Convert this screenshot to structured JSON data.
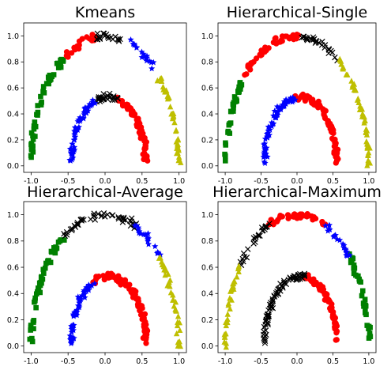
{
  "chart_data": [
    {
      "type": "scatter",
      "title": "Kmeans",
      "xlim": [
        -1.1,
        1.1
      ],
      "ylim": [
        -0.05,
        1.1
      ],
      "xticks": [
        "-1.0",
        "-0.5",
        "0.0",
        "0.5",
        "1.0"
      ],
      "yticks": [
        "0.0",
        "0.2",
        "0.4",
        "0.6",
        "0.8",
        "1.0"
      ],
      "series": [
        {
          "color": "#008000",
          "marker": "square",
          "arcs": [
            {
              "moon": "outer",
              "from": 122,
              "to": 180
            }
          ]
        },
        {
          "color": "#ff0000",
          "marker": "circle",
          "arcs": [
            {
              "moon": "outer",
              "from": 96,
              "to": 122
            },
            {
              "moon": "inner",
              "from": 0,
              "to": 78
            }
          ]
        },
        {
          "color": "#000000",
          "marker": "x",
          "arcs": [
            {
              "moon": "outer",
              "from": 72,
              "to": 96
            },
            {
              "moon": "inner",
              "from": 78,
              "to": 112
            }
          ]
        },
        {
          "color": "#0000ff",
          "marker": "star",
          "arcs": [
            {
              "moon": "outer",
              "from": 50,
              "to": 72
            },
            {
              "moon": "inner",
              "from": 112,
              "to": 180
            }
          ]
        },
        {
          "color": "#bfbf00",
          "marker": "triangle",
          "arcs": [
            {
              "moon": "outer",
              "from": 0,
              "to": 50
            }
          ]
        }
      ]
    },
    {
      "type": "scatter",
      "title": "Hierarchical-Single",
      "xlim": [
        -1.1,
        1.1
      ],
      "ylim": [
        -0.05,
        1.1
      ],
      "xticks": [
        "-1.0",
        "-0.5",
        "0.0",
        "0.5",
        "1.0"
      ],
      "yticks": [
        "0.0",
        "0.2",
        "0.4",
        "0.6",
        "0.8",
        "1.0"
      ],
      "series": [
        {
          "color": "#008000",
          "marker": "square",
          "arcs": [
            {
              "moon": "outer",
              "from": 138,
              "to": 180
            }
          ]
        },
        {
          "color": "#ff0000",
          "marker": "circle",
          "arcs": [
            {
              "moon": "outer",
              "from": 88,
              "to": 138
            },
            {
              "moon": "inner",
              "from": 0,
              "to": 100
            }
          ]
        },
        {
          "color": "#000000",
          "marker": "x",
          "arcs": [
            {
              "moon": "outer",
              "from": 55,
              "to": 88
            }
          ]
        },
        {
          "color": "#0000ff",
          "marker": "star",
          "arcs": [
            {
              "moon": "inner",
              "from": 100,
              "to": 180
            }
          ]
        },
        {
          "color": "#bfbf00",
          "marker": "triangle",
          "arcs": [
            {
              "moon": "outer",
              "from": 0,
              "to": 55
            }
          ]
        }
      ]
    },
    {
      "type": "scatter",
      "title": "Hierarchical-Average",
      "xlim": [
        -1.1,
        1.1
      ],
      "ylim": [
        -0.05,
        1.1
      ],
      "xticks": [
        "-1.0",
        "-0.5",
        "0.0",
        "0.5",
        "1.0"
      ],
      "yticks": [
        "0.0",
        "0.2",
        "0.4",
        "0.6",
        "0.8",
        "1.0"
      ],
      "series": [
        {
          "color": "#008000",
          "marker": "square",
          "arcs": [
            {
              "moon": "outer",
              "from": 123,
              "to": 180
            }
          ]
        },
        {
          "color": "#ff0000",
          "marker": "circle",
          "arcs": [
            {
              "moon": "inner",
              "from": 0,
              "to": 113
            }
          ]
        },
        {
          "color": "#000000",
          "marker": "x",
          "arcs": [
            {
              "moon": "outer",
              "from": 65,
              "to": 123
            }
          ]
        },
        {
          "color": "#0000ff",
          "marker": "star",
          "arcs": [
            {
              "moon": "outer",
              "from": 42,
              "to": 65
            },
            {
              "moon": "inner",
              "from": 113,
              "to": 180
            }
          ]
        },
        {
          "color": "#bfbf00",
          "marker": "triangle",
          "arcs": [
            {
              "moon": "outer",
              "from": 0,
              "to": 42
            }
          ]
        }
      ]
    },
    {
      "type": "scatter",
      "title": "Hierarchical-Maximum",
      "xlim": [
        -1.1,
        1.1
      ],
      "ylim": [
        -0.05,
        1.1
      ],
      "xticks": [
        "-1.0",
        "-0.5",
        "0.0",
        "0.5",
        "1.0"
      ],
      "yticks": [
        "0.0",
        "0.2",
        "0.4",
        "0.6",
        "0.8",
        "1.0"
      ],
      "series": [
        {
          "color": "#008000",
          "marker": "square",
          "arcs": [
            {
              "moon": "outer",
              "from": 0,
              "to": 42
            }
          ]
        },
        {
          "color": "#ff0000",
          "marker": "circle",
          "arcs": [
            {
              "moon": "outer",
              "from": 67,
              "to": 113
            },
            {
              "moon": "inner",
              "from": 0,
              "to": 83
            }
          ]
        },
        {
          "color": "#000000",
          "marker": "x",
          "arcs": [
            {
              "moon": "outer",
              "from": 113,
              "to": 142
            },
            {
              "moon": "inner",
              "from": 83,
              "to": 180
            }
          ]
        },
        {
          "color": "#0000ff",
          "marker": "star",
          "arcs": [
            {
              "moon": "outer",
              "from": 42,
              "to": 67
            }
          ]
        },
        {
          "color": "#bfbf00",
          "marker": "triangle",
          "arcs": [
            {
              "moon": "outer",
              "from": 142,
              "to": 180
            }
          ]
        }
      ]
    }
  ]
}
